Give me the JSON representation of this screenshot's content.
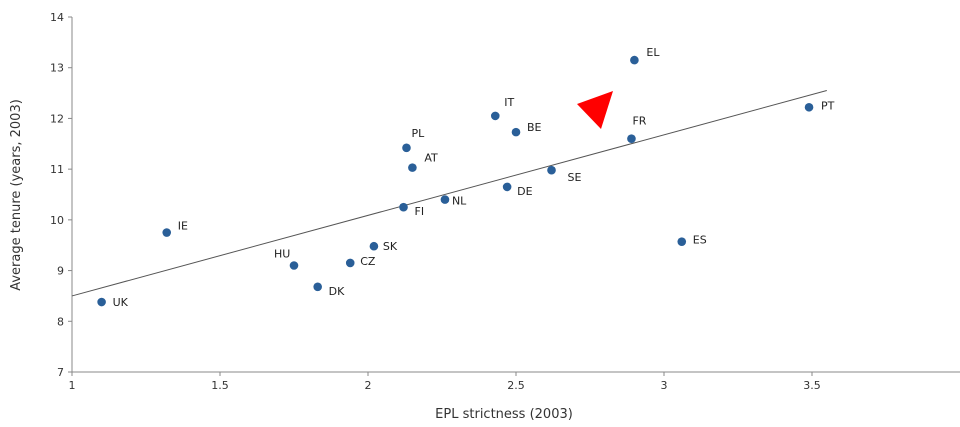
{
  "chart_data": {
    "type": "scatter",
    "title": "",
    "xlabel": "EPL strictness (2003)",
    "ylabel": "Average tenure (years, 2003)",
    "xlim": [
      1,
      4
    ],
    "ylim": [
      7,
      14
    ],
    "x_ticks": [
      1,
      1.5,
      2,
      2.5,
      3,
      3.5
    ],
    "x_tick_labels": [
      "1",
      "1.5",
      "2",
      "2.5",
      "3",
      "3.5"
    ],
    "y_ticks": [
      7,
      8,
      9,
      10,
      11,
      12,
      13,
      14
    ],
    "y_tick_labels": [
      "7",
      "8",
      "9",
      "10",
      "11",
      "12",
      "13",
      "14"
    ],
    "grid": false,
    "legend": "none",
    "marker_color": "#2a5f98",
    "trendline": {
      "x": [
        1,
        3.55
      ],
      "y": [
        8.5,
        12.55
      ],
      "color": "#555555"
    },
    "annotation": {
      "type": "red-triangle-pointer",
      "color": "#ff0000"
    },
    "points": [
      {
        "label": "UK",
        "x": 1.1,
        "y": 8.38
      },
      {
        "label": "IE",
        "x": 1.32,
        "y": 9.75
      },
      {
        "label": "HU",
        "x": 1.75,
        "y": 9.1
      },
      {
        "label": "DK",
        "x": 1.83,
        "y": 8.68
      },
      {
        "label": "CZ",
        "x": 1.94,
        "y": 9.15
      },
      {
        "label": "SK",
        "x": 2.02,
        "y": 9.48
      },
      {
        "label": "FI",
        "x": 2.12,
        "y": 10.25
      },
      {
        "label": "PL",
        "x": 2.13,
        "y": 11.42
      },
      {
        "label": "AT",
        "x": 2.15,
        "y": 11.03
      },
      {
        "label": "NL",
        "x": 2.26,
        "y": 10.4
      },
      {
        "label": "IT",
        "x": 2.43,
        "y": 12.05
      },
      {
        "label": "DE",
        "x": 2.47,
        "y": 10.65
      },
      {
        "label": "BE",
        "x": 2.5,
        "y": 11.73
      },
      {
        "label": "SE",
        "x": 2.62,
        "y": 10.98
      },
      {
        "label": "FR",
        "x": 2.89,
        "y": 11.6
      },
      {
        "label": "EL",
        "x": 2.9,
        "y": 13.15
      },
      {
        "label": "ES",
        "x": 3.06,
        "y": 9.57
      },
      {
        "label": "PT",
        "x": 3.49,
        "y": 12.22
      }
    ]
  }
}
